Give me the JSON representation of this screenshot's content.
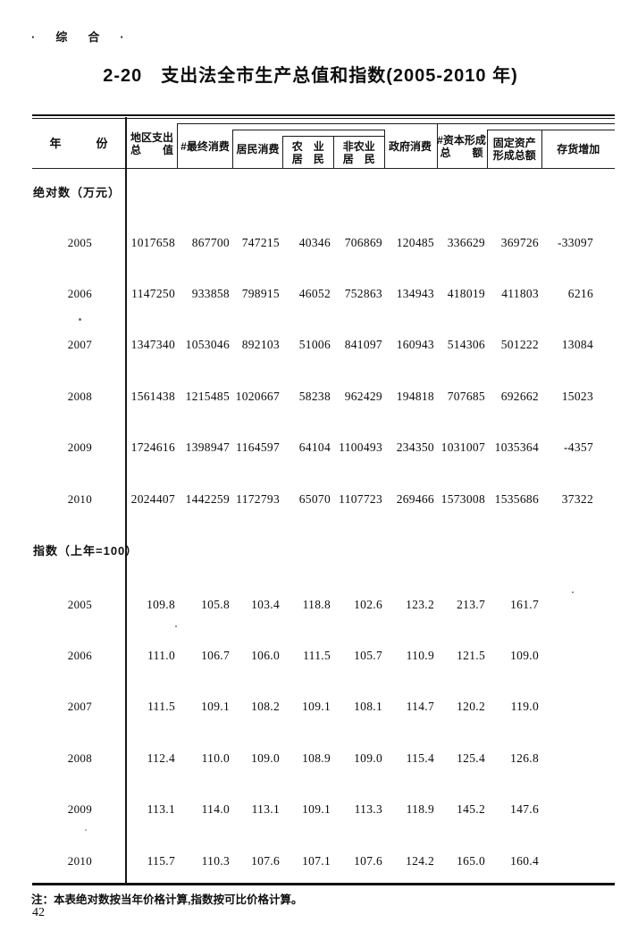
{
  "page": {
    "category_label": "·　综　合　·",
    "title": "2-20　支出法全市生产总值和指数(2005-2010 年)",
    "note": "注：本表绝对数按当年价格计算,指数按可比价格计算。",
    "page_number": "42"
  },
  "table": {
    "header": {
      "year": "年　　　份",
      "region_line1": "地区支出",
      "region_line2": "总　　值",
      "final_consumption": "#最终消费",
      "household_consumption": "居民消费",
      "agri_line1": "农　业",
      "agri_line2": "居　民",
      "nonagri_line1": "非农业",
      "nonagri_line2": "居　民",
      "government_consumption": "政府消费",
      "capital_line1": "#资本形成",
      "capital_line2": "总　　额",
      "fixed_line1": "固定资产",
      "fixed_line2": "形成总额",
      "inventory": "存货增加"
    },
    "sections": [
      {
        "label": "绝对数（万元）",
        "rows": [
          {
            "year": "2005",
            "values": [
              "1017658",
              "867700",
              "747215",
              "40346",
              "706869",
              "120485",
              "336629",
              "369726",
              "-33097"
            ]
          },
          {
            "year": "2006",
            "values": [
              "1147250",
              "933858",
              "798915",
              "46052",
              "752863",
              "134943",
              "418019",
              "411803",
              "6216"
            ]
          },
          {
            "year": "2007",
            "values": [
              "1347340",
              "1053046",
              "892103",
              "51006",
              "841097",
              "160943",
              "514306",
              "501222",
              "13084"
            ]
          },
          {
            "year": "2008",
            "values": [
              "1561438",
              "1215485",
              "1020667",
              "58238",
              "962429",
              "194818",
              "707685",
              "692662",
              "15023"
            ]
          },
          {
            "year": "2009",
            "values": [
              "1724616",
              "1398947",
              "1164597",
              "64104",
              "1100493",
              "234350",
              "1031007",
              "1035364",
              "-4357"
            ]
          },
          {
            "year": "2010",
            "values": [
              "2024407",
              "1442259",
              "1172793",
              "65070",
              "1107723",
              "269466",
              "1573008",
              "1535686",
              "37322"
            ]
          }
        ]
      },
      {
        "label": "指数（上年=100）",
        "rows": [
          {
            "year": "2005",
            "values": [
              "109.8",
              "105.8",
              "103.4",
              "118.8",
              "102.6",
              "123.2",
              "213.7",
              "161.7",
              ""
            ]
          },
          {
            "year": "2006",
            "values": [
              "111.0",
              "106.7",
              "106.0",
              "111.5",
              "105.7",
              "110.9",
              "121.5",
              "109.0",
              ""
            ]
          },
          {
            "year": "2007",
            "values": [
              "111.5",
              "109.1",
              "108.2",
              "109.1",
              "108.1",
              "114.7",
              "120.2",
              "119.0",
              ""
            ]
          },
          {
            "year": "2008",
            "values": [
              "112.4",
              "110.0",
              "109.0",
              "108.9",
              "109.0",
              "115.4",
              "125.4",
              "126.8",
              ""
            ]
          },
          {
            "year": "2009",
            "values": [
              "113.1",
              "114.0",
              "113.1",
              "109.1",
              "113.3",
              "118.9",
              "145.2",
              "147.6",
              ""
            ]
          },
          {
            "year": "2010",
            "values": [
              "115.7",
              "110.3",
              "107.6",
              "107.1",
              "107.6",
              "124.2",
              "165.0",
              "160.4",
              ""
            ]
          }
        ]
      }
    ]
  }
}
